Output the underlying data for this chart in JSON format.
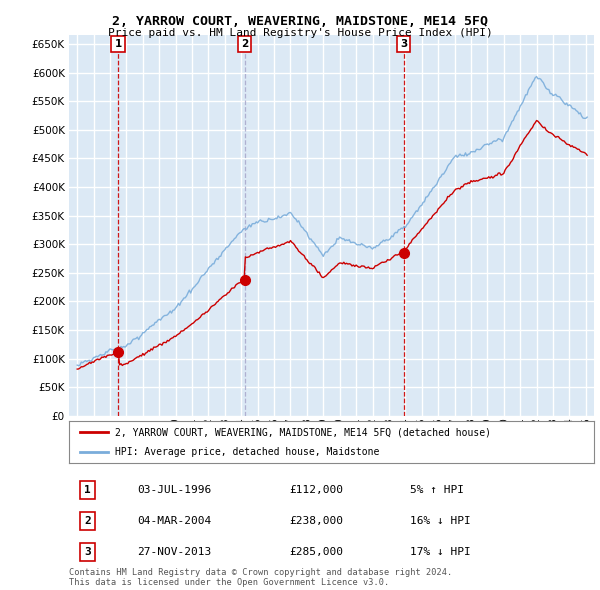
{
  "title": "2, YARROW COURT, WEAVERING, MAIDSTONE, ME14 5FQ",
  "subtitle": "Price paid vs. HM Land Registry's House Price Index (HPI)",
  "ytick_values": [
    0,
    50000,
    100000,
    150000,
    200000,
    250000,
    300000,
    350000,
    400000,
    450000,
    500000,
    550000,
    600000,
    650000
  ],
  "xlim": [
    1993.5,
    2025.5
  ],
  "ylim": [
    0,
    665000
  ],
  "background_color": "#dce9f5",
  "grid_color": "#ffffff",
  "hpi_color": "#7aaddb",
  "price_color": "#cc0000",
  "vline_colors": [
    "#cc0000",
    "#8888aa",
    "#cc0000"
  ],
  "transactions": [
    {
      "num": 1,
      "date": "03-JUL-1996",
      "year": 1996.5,
      "price": 112000
    },
    {
      "num": 2,
      "date": "04-MAR-2004",
      "year": 2004.2,
      "price": 238000
    },
    {
      "num": 3,
      "date": "27-NOV-2013",
      "year": 2013.9,
      "price": 285000
    }
  ],
  "legend_label_price": "2, YARROW COURT, WEAVERING, MAIDSTONE, ME14 5FQ (detached house)",
  "legend_label_hpi": "HPI: Average price, detached house, Maidstone",
  "footer": "Contains HM Land Registry data © Crown copyright and database right 2024.\nThis data is licensed under the Open Government Licence v3.0.",
  "table_rows": [
    {
      "num": 1,
      "date": "03-JUL-1996",
      "price": "£112,000",
      "pct": "5% ↑ HPI"
    },
    {
      "num": 2,
      "date": "04-MAR-2004",
      "price": "£238,000",
      "pct": "16% ↓ HPI"
    },
    {
      "num": 3,
      "date": "27-NOV-2013",
      "price": "£285,000",
      "pct": "17% ↓ HPI"
    }
  ]
}
